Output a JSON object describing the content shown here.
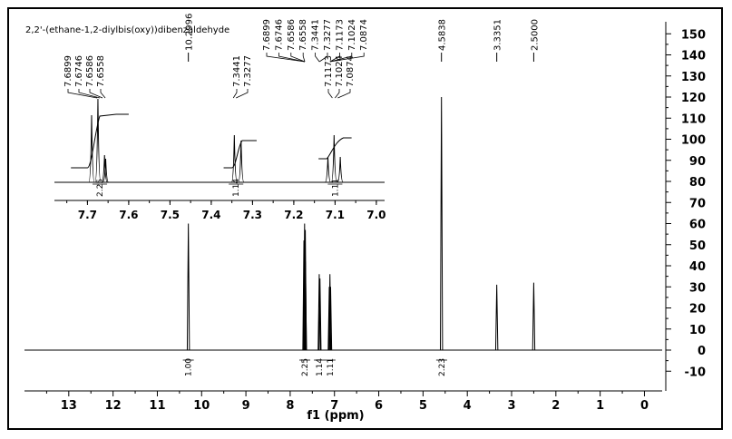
{
  "chart_data": [
    {
      "type": "line",
      "title": "2,2'-(ethane-1,2-diylbis(oxy))dibenzaldehyde",
      "xlabel": "f1 (ppm)",
      "ylabel": "",
      "xlim": [
        14.0,
        -0.4
      ],
      "ylim": [
        -14,
        152
      ],
      "x_ticks": [
        "13",
        "12",
        "11",
        "10",
        "9",
        "8",
        "7",
        "6",
        "5",
        "4",
        "3",
        "2",
        "1",
        "0"
      ],
      "y_ticks": [
        "150",
        "140",
        "130",
        "120",
        "110",
        "100",
        "90",
        "80",
        "70",
        "60",
        "50",
        "40",
        "30",
        "20",
        "10",
        "0",
        "-10"
      ],
      "peaks": [
        {
          "ppm": 10.2996,
          "height": 60
        },
        {
          "ppm": 7.6899,
          "height": 52
        },
        {
          "ppm": 7.6746,
          "height": 60
        },
        {
          "ppm": 7.6586,
          "height": 57
        },
        {
          "ppm": 7.6558,
          "height": 42
        },
        {
          "ppm": 7.3441,
          "height": 36
        },
        {
          "ppm": 7.3277,
          "height": 34
        },
        {
          "ppm": 7.1173,
          "height": 30
        },
        {
          "ppm": 7.1024,
          "height": 36
        },
        {
          "ppm": 7.0874,
          "height": 30
        },
        {
          "ppm": 4.5838,
          "height": 120
        },
        {
          "ppm": 3.3351,
          "height": 31
        },
        {
          "ppm": 2.5,
          "height": 32
        }
      ],
      "peak_labels_group1": [
        "7.6899",
        "7.6746",
        "7.6586",
        "7.6558",
        "7.3441",
        "7.3277",
        "7.1173",
        "7.1024",
        "7.0874"
      ],
      "peak_labels_single": [
        {
          "ppm": 10.2996,
          "label": "10.2996"
        },
        {
          "ppm": 4.5838,
          "label": "4.5838"
        },
        {
          "ppm": 3.3351,
          "label": "3.3351"
        },
        {
          "ppm": 2.5,
          "label": "2.5000"
        }
      ],
      "integrals": [
        {
          "ppm": 10.3,
          "label": "1.00"
        },
        {
          "ppm": 7.67,
          "label": "2.25"
        },
        {
          "ppm": 7.34,
          "label": "1.14"
        },
        {
          "ppm": 7.1,
          "label": "1.11"
        },
        {
          "ppm": 4.58,
          "label": "2.23"
        }
      ]
    },
    {
      "type": "line",
      "title": "",
      "xlim": [
        7.78,
        6.98
      ],
      "x_ticks": [
        "7.7",
        "7.6",
        "7.5",
        "7.4",
        "7.3",
        "7.2",
        "7.1",
        "7.0"
      ],
      "peak_labels": [
        {
          "group": [
            "7.6899",
            "7.6746",
            "7.6586",
            "7.6558"
          ]
        },
        {
          "group": [
            "7.3441",
            "7.3277"
          ]
        },
        {
          "group": [
            "7.1173",
            "7.1024",
            "7.0874"
          ]
        }
      ],
      "integrals": [
        {
          "ppm": 7.67,
          "label": "2.25"
        },
        {
          "ppm": 7.34,
          "label": "1.14"
        },
        {
          "ppm": 7.1,
          "label": "1.11"
        }
      ]
    }
  ]
}
